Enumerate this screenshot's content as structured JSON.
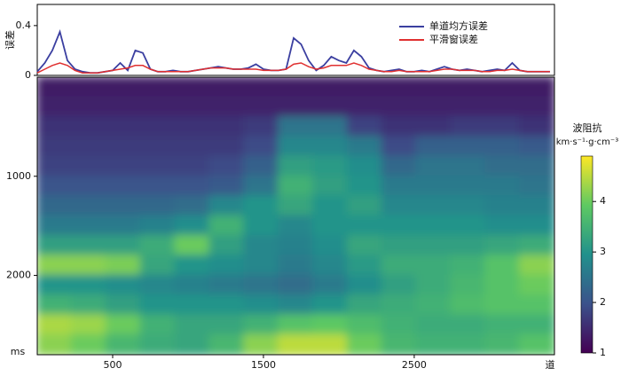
{
  "chart_data": [
    {
      "type": "line",
      "ylabel": "误差",
      "legend": "upper right",
      "x": [
        0,
        50,
        100,
        150,
        200,
        250,
        300,
        350,
        400,
        450,
        500,
        550,
        600,
        650,
        700,
        750,
        800,
        850,
        900,
        950,
        1000,
        1050,
        1100,
        1150,
        1200,
        1250,
        1300,
        1350,
        1400,
        1450,
        1500,
        1550,
        1600,
        1650,
        1700,
        1750,
        1800,
        1850,
        1900,
        1950,
        2000,
        2050,
        2100,
        2150,
        2200,
        2250,
        2300,
        2350,
        2400,
        2450,
        2500,
        2550,
        2600,
        2650,
        2700,
        2750,
        2800,
        2850,
        2900,
        2950,
        3000,
        3050,
        3100,
        3150,
        3200,
        3250,
        3300,
        3350,
        3400
      ],
      "xlim": [
        0,
        3430
      ],
      "ylim": [
        0,
        0.57
      ],
      "yticks": [
        0,
        0.4
      ],
      "series": [
        {
          "name": "单道均方误差",
          "color": "#3b3fa0",
          "values": [
            0.03,
            0.1,
            0.2,
            0.35,
            0.12,
            0.05,
            0.03,
            0.02,
            0.02,
            0.03,
            0.04,
            0.1,
            0.04,
            0.2,
            0.18,
            0.05,
            0.03,
            0.03,
            0.04,
            0.03,
            0.03,
            0.04,
            0.05,
            0.06,
            0.07,
            0.06,
            0.05,
            0.05,
            0.06,
            0.09,
            0.05,
            0.04,
            0.04,
            0.05,
            0.3,
            0.25,
            0.12,
            0.04,
            0.08,
            0.15,
            0.12,
            0.1,
            0.2,
            0.15,
            0.06,
            0.04,
            0.03,
            0.04,
            0.05,
            0.03,
            0.03,
            0.04,
            0.03,
            0.05,
            0.07,
            0.05,
            0.04,
            0.05,
            0.04,
            0.03,
            0.04,
            0.05,
            0.04,
            0.1,
            0.04,
            0.03,
            0.03,
            0.03,
            0.03
          ]
        },
        {
          "name": "平滑窗误差",
          "color": "#e03030",
          "values": [
            0.02,
            0.05,
            0.08,
            0.1,
            0.08,
            0.04,
            0.02,
            0.02,
            0.02,
            0.03,
            0.04,
            0.05,
            0.06,
            0.08,
            0.08,
            0.05,
            0.03,
            0.03,
            0.03,
            0.03,
            0.03,
            0.04,
            0.05,
            0.06,
            0.06,
            0.06,
            0.05,
            0.05,
            0.05,
            0.05,
            0.04,
            0.04,
            0.04,
            0.05,
            0.09,
            0.1,
            0.07,
            0.05,
            0.06,
            0.08,
            0.08,
            0.08,
            0.1,
            0.08,
            0.05,
            0.04,
            0.03,
            0.03,
            0.04,
            0.03,
            0.03,
            0.03,
            0.03,
            0.04,
            0.05,
            0.05,
            0.04,
            0.04,
            0.04,
            0.03,
            0.03,
            0.04,
            0.04,
            0.05,
            0.04,
            0.03,
            0.03,
            0.03,
            0.03
          ]
        }
      ]
    },
    {
      "type": "heatmap",
      "xlabel": "道",
      "ylabel": "ms",
      "y_inverted": true,
      "xlim": [
        0,
        3430
      ],
      "ylim": [
        0,
        2800
      ],
      "xticks": [
        500,
        1500,
        2500
      ],
      "yticks": [
        1000,
        2000
      ],
      "values": [
        [
          1.3,
          1.3,
          1.3,
          1.3,
          1.3,
          1.3,
          1.3,
          1.3,
          1.3,
          1.3,
          1.3,
          1.3,
          1.3,
          1.3,
          1.3
        ],
        [
          1.4,
          1.4,
          1.4,
          1.4,
          1.4,
          1.4,
          1.4,
          1.4,
          1.4,
          1.4,
          1.4,
          1.4,
          1.4,
          1.4,
          1.4
        ],
        [
          1.6,
          1.6,
          1.6,
          1.6,
          1.6,
          1.6,
          1.7,
          2.5,
          2.5,
          1.8,
          1.6,
          1.6,
          1.7,
          1.7,
          1.6
        ],
        [
          1.7,
          1.7,
          1.7,
          1.7,
          1.7,
          1.7,
          1.9,
          2.8,
          2.8,
          2.6,
          1.9,
          2.2,
          2.2,
          2.2,
          2.1
        ],
        [
          1.8,
          1.8,
          1.8,
          1.8,
          1.8,
          1.9,
          2.2,
          3.2,
          3.1,
          2.9,
          2.3,
          2.5,
          2.5,
          2.4,
          2.4
        ],
        [
          2.0,
          2.0,
          2.0,
          2.0,
          2.0,
          2.1,
          2.5,
          3.5,
          3.2,
          3.0,
          2.6,
          2.6,
          2.6,
          2.6,
          2.5
        ],
        [
          2.3,
          2.3,
          2.3,
          2.3,
          2.4,
          2.8,
          3.0,
          3.3,
          3.0,
          3.2,
          2.8,
          2.8,
          2.8,
          2.7,
          2.7
        ],
        [
          2.6,
          2.6,
          2.6,
          2.7,
          2.9,
          3.5,
          3.0,
          2.8,
          3.0,
          3.0,
          3.0,
          3.0,
          3.0,
          2.9,
          2.9
        ],
        [
          3.2,
          3.2,
          3.2,
          3.4,
          4.0,
          3.2,
          2.8,
          2.7,
          2.9,
          3.3,
          3.2,
          3.2,
          3.2,
          3.3,
          3.4
        ],
        [
          4.2,
          4.2,
          4.1,
          3.3,
          3.0,
          2.9,
          2.8,
          2.6,
          2.8,
          3.1,
          3.4,
          3.4,
          3.5,
          3.8,
          4.2
        ],
        [
          3.0,
          3.0,
          2.9,
          2.8,
          2.7,
          2.6,
          2.5,
          2.4,
          2.6,
          2.9,
          3.2,
          3.4,
          3.6,
          3.8,
          4.0
        ],
        [
          3.5,
          3.4,
          3.2,
          3.0,
          3.0,
          3.0,
          2.9,
          2.8,
          3.0,
          3.3,
          3.4,
          3.5,
          3.7,
          3.8,
          3.8
        ],
        [
          4.4,
          4.3,
          4.0,
          3.5,
          3.3,
          3.3,
          3.5,
          3.8,
          3.9,
          3.7,
          3.5,
          3.4,
          3.4,
          3.5,
          3.5
        ],
        [
          4.2,
          4.0,
          3.6,
          3.4,
          3.3,
          3.6,
          4.2,
          4.5,
          4.5,
          4.0,
          3.6,
          3.5,
          3.5,
          3.6,
          3.8
        ]
      ],
      "colorbar": {
        "title": "波阻抗",
        "unit": "km·s⁻¹·g·cm⁻³",
        "lim": [
          1,
          4.9
        ],
        "ticks": [
          1,
          2,
          3,
          4
        ]
      }
    }
  ]
}
